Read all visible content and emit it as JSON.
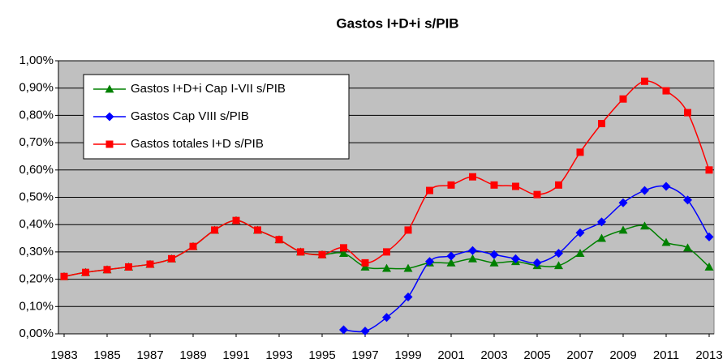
{
  "chart_data": {
    "type": "line",
    "title": "Gastos I+D+i s/PIB",
    "x": [
      1983,
      1984,
      1985,
      1986,
      1987,
      1988,
      1989,
      1990,
      1991,
      1992,
      1993,
      1994,
      1995,
      1996,
      1997,
      1998,
      1999,
      2000,
      2001,
      2002,
      2003,
      2004,
      2005,
      2006,
      2007,
      2008,
      2009,
      2010,
      2011,
      2012,
      2013
    ],
    "xlim": [
      1983,
      2013
    ],
    "xticks": [
      1983,
      1985,
      1987,
      1989,
      1991,
      1993,
      1995,
      1997,
      1999,
      2001,
      2003,
      2005,
      2007,
      2009,
      2011,
      2013
    ],
    "ylim": [
      0,
      1
    ],
    "yticks": [
      {
        "value": 0,
        "label": "0,00%"
      },
      {
        "value": 0.1,
        "label": "0,10%"
      },
      {
        "value": 0.2,
        "label": "0,20%"
      },
      {
        "value": 0.3,
        "label": "0,30%"
      },
      {
        "value": 0.4,
        "label": "0,40%"
      },
      {
        "value": 0.5,
        "label": "0,50%"
      },
      {
        "value": 0.6,
        "label": "0,60%"
      },
      {
        "value": 0.7,
        "label": "0,70%"
      },
      {
        "value": 0.8,
        "label": "0,80%"
      },
      {
        "value": 0.9,
        "label": "0,90%"
      },
      {
        "value": 1,
        "label": "1,00%"
      }
    ],
    "grid": true,
    "legend": "upper left",
    "series": [
      {
        "name": "Gastos I+D+i Cap I-VII s/PIB",
        "color": "#008000",
        "marker": "triangle",
        "values": [
          0.21,
          0.225,
          0.235,
          0.245,
          0.255,
          0.275,
          0.32,
          0.38,
          0.415,
          0.38,
          0.345,
          0.3,
          0.29,
          0.295,
          0.245,
          0.24,
          0.24,
          0.26,
          0.26,
          0.275,
          0.26,
          0.265,
          0.25,
          0.25,
          0.295,
          0.35,
          0.38,
          0.395,
          0.335,
          0.315,
          0.245
        ]
      },
      {
        "name": "Gastos Cap VIII s/PIB",
        "color": "#0000ff",
        "marker": "diamond",
        "values": [
          null,
          null,
          null,
          null,
          null,
          null,
          null,
          null,
          null,
          null,
          null,
          null,
          null,
          0.015,
          0.01,
          0.06,
          0.135,
          0.265,
          0.285,
          0.305,
          0.29,
          0.275,
          0.26,
          0.295,
          0.37,
          0.41,
          0.48,
          0.525,
          0.54,
          0.49,
          0.355
        ]
      },
      {
        "name": "Gastos totales I+D s/PIB",
        "color": "#ff0000",
        "marker": "square",
        "values": [
          0.21,
          0.225,
          0.235,
          0.245,
          0.255,
          0.275,
          0.32,
          0.38,
          0.415,
          0.38,
          0.345,
          0.3,
          0.29,
          0.315,
          0.26,
          0.3,
          0.38,
          0.525,
          0.545,
          0.575,
          0.545,
          0.54,
          0.51,
          0.545,
          0.665,
          0.77,
          0.86,
          0.925,
          0.89,
          0.81,
          0.6
        ]
      }
    ]
  }
}
